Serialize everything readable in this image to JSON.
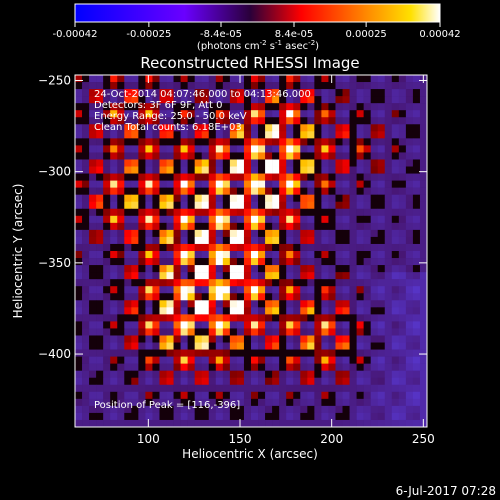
{
  "colorbar": {
    "ticks": [
      "-0.00042",
      "-0.00025",
      "-8.4e-05",
      "8.4e-05",
      "0.00025",
      "0.00042"
    ],
    "tick_values": [
      -0.00042,
      -0.00025,
      -8.4e-05,
      8.4e-05,
      0.00025,
      0.00042
    ],
    "range": [
      -0.00042,
      0.00042
    ],
    "units_prefix": "(photons cm",
    "units_exp1": "-2",
    "units_mid": " s",
    "units_exp2": "-1",
    "units_mid2": " asec",
    "units_exp3": "-2",
    "units_suffix": ")",
    "colors": [
      "#0000ff",
      "#6a00ff",
      "#ff0000",
      "#ff7a00",
      "#ffd000",
      "#ffffff"
    ]
  },
  "annotations": {
    "time_range": "24-Oct-2014 04:07:46.000 to 04:13:46.000",
    "detectors": "Detectors: 3F 6F 9F, Att 0",
    "energy": "Energy Range: 25.0 - 50.0 keV",
    "clean": "Clean    Total counts: 6.18E+03",
    "peak": "Position of Peak = [116,-396]"
  },
  "footer": {
    "date": "6-Jul-2017 07:28"
  },
  "chart_data": {
    "type": "heatmap",
    "title": "Reconstructed RHESSI Image",
    "xlabel": "Heliocentric X (arcsec)",
    "ylabel": "Heliocentric Y (arcsec)",
    "xlim": [
      60,
      252
    ],
    "ylim": [
      -440,
      -247
    ],
    "xticks": [
      100,
      150,
      200,
      250
    ],
    "yticks": [
      -250,
      -300,
      -350,
      -400
    ],
    "peak": [
      116,
      -396
    ],
    "colormap": "RHESSI red-temperature (blue/purple negative, red-yellow-white positive)",
    "grid_note": "approximately 50 x 50 pixel image; individual pixel values not readable"
  }
}
